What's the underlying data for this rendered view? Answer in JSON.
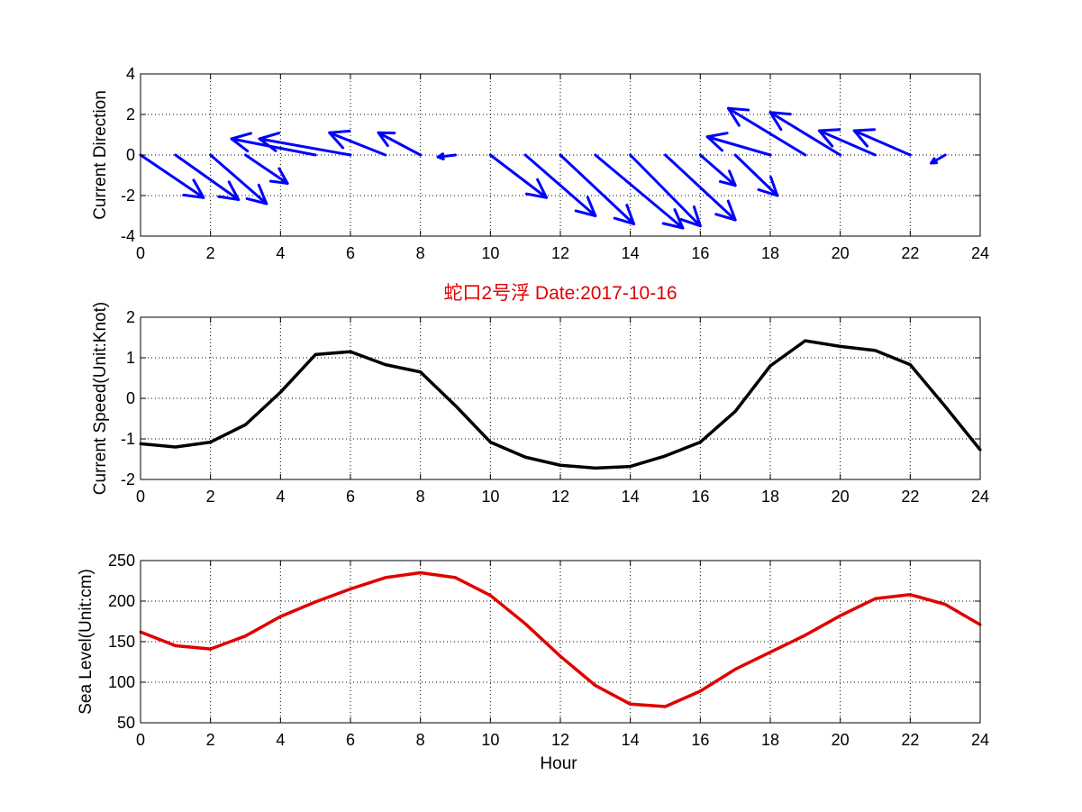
{
  "title": "蛇口2号浮   Date:2017-10-16",
  "colors": {
    "direction_arrows": "#0000ff",
    "speed_line": "#000000",
    "sea_level_line": "#e00000",
    "title": "#e00000",
    "grid": "#000000",
    "background": "#ffffff"
  },
  "chart_data": [
    {
      "type": "quiver",
      "name": "current-direction",
      "xlabel": "",
      "ylabel": "Current Direction",
      "xlim": [
        0,
        24
      ],
      "ylim": [
        -4,
        4
      ],
      "xticks": [
        0,
        2,
        4,
        6,
        8,
        10,
        12,
        14,
        16,
        18,
        20,
        22,
        24
      ],
      "yticks": [
        -4,
        -2,
        0,
        2,
        4
      ],
      "grid": true,
      "arrows": [
        {
          "x": 0,
          "u": 1.8,
          "v": -2.1
        },
        {
          "x": 1,
          "u": 1.8,
          "v": -2.2
        },
        {
          "x": 2,
          "u": 1.6,
          "v": -2.4
        },
        {
          "x": 3,
          "u": 1.2,
          "v": -1.4
        },
        {
          "x": 5,
          "u": -2.4,
          "v": 0.8
        },
        {
          "x": 6,
          "u": -2.6,
          "v": 0.8
        },
        {
          "x": 7,
          "u": -1.6,
          "v": 1.1
        },
        {
          "x": 8,
          "u": -1.2,
          "v": 1.1
        },
        {
          "x": 9,
          "u": -0.5,
          "v": -0.1
        },
        {
          "x": 10,
          "u": 1.6,
          "v": -2.1
        },
        {
          "x": 11,
          "u": 2.0,
          "v": -3.0
        },
        {
          "x": 12,
          "u": 2.1,
          "v": -3.4
        },
        {
          "x": 13,
          "u": 2.5,
          "v": -3.6
        },
        {
          "x": 14,
          "u": 2.0,
          "v": -3.5
        },
        {
          "x": 15,
          "u": 2.0,
          "v": -3.2
        },
        {
          "x": 16,
          "u": 1.0,
          "v": -1.5
        },
        {
          "x": 17,
          "u": 1.2,
          "v": -2.0
        },
        {
          "x": 18,
          "u": -1.8,
          "v": 0.9
        },
        {
          "x": 19,
          "u": -2.2,
          "v": 2.3
        },
        {
          "x": 20,
          "u": -2.0,
          "v": 2.1
        },
        {
          "x": 21,
          "u": -1.6,
          "v": 1.2
        },
        {
          "x": 22,
          "u": -1.6,
          "v": 1.2
        },
        {
          "x": 23,
          "u": -0.4,
          "v": -0.4
        }
      ]
    },
    {
      "type": "line",
      "name": "current-speed",
      "xlabel": "",
      "ylabel": "Current Speed(Unit:Knot)",
      "xlim": [
        0,
        24
      ],
      "ylim": [
        -2,
        2
      ],
      "xticks": [
        0,
        2,
        4,
        6,
        8,
        10,
        12,
        14,
        16,
        18,
        20,
        22,
        24
      ],
      "yticks": [
        -2,
        -1,
        0,
        1,
        2
      ],
      "grid": true,
      "x": [
        0,
        1,
        2,
        3,
        4,
        5,
        6,
        7,
        8,
        9,
        10,
        11,
        12,
        13,
        14,
        15,
        16,
        17,
        18,
        19,
        20,
        21,
        22,
        23,
        24
      ],
      "values": [
        -1.12,
        -1.2,
        -1.08,
        -0.65,
        0.15,
        1.08,
        1.15,
        0.83,
        0.65,
        -0.18,
        -1.08,
        -1.45,
        -1.65,
        -1.72,
        -1.68,
        -1.42,
        -1.08,
        -0.32,
        0.8,
        1.42,
        1.28,
        1.18,
        0.83,
        -0.2,
        -1.27
      ]
    },
    {
      "type": "line",
      "name": "sea-level",
      "xlabel": "Hour",
      "ylabel": "Sea Level(Unit:cm)",
      "xlim": [
        0,
        24
      ],
      "ylim": [
        50,
        250
      ],
      "xticks": [
        0,
        2,
        4,
        6,
        8,
        10,
        12,
        14,
        16,
        18,
        20,
        22,
        24
      ],
      "yticks": [
        50,
        100,
        150,
        200,
        250
      ],
      "grid": true,
      "x": [
        0,
        1,
        2,
        3,
        4,
        5,
        6,
        7,
        8,
        9,
        10,
        11,
        12,
        13,
        14,
        15,
        16,
        17,
        18,
        19,
        20,
        21,
        22,
        23,
        24
      ],
      "values": [
        162,
        145,
        141,
        157,
        181,
        199,
        215,
        229,
        235,
        229,
        207,
        172,
        132,
        96,
        73,
        70,
        89,
        116,
        137,
        158,
        182,
        203,
        208,
        196,
        171
      ]
    }
  ]
}
